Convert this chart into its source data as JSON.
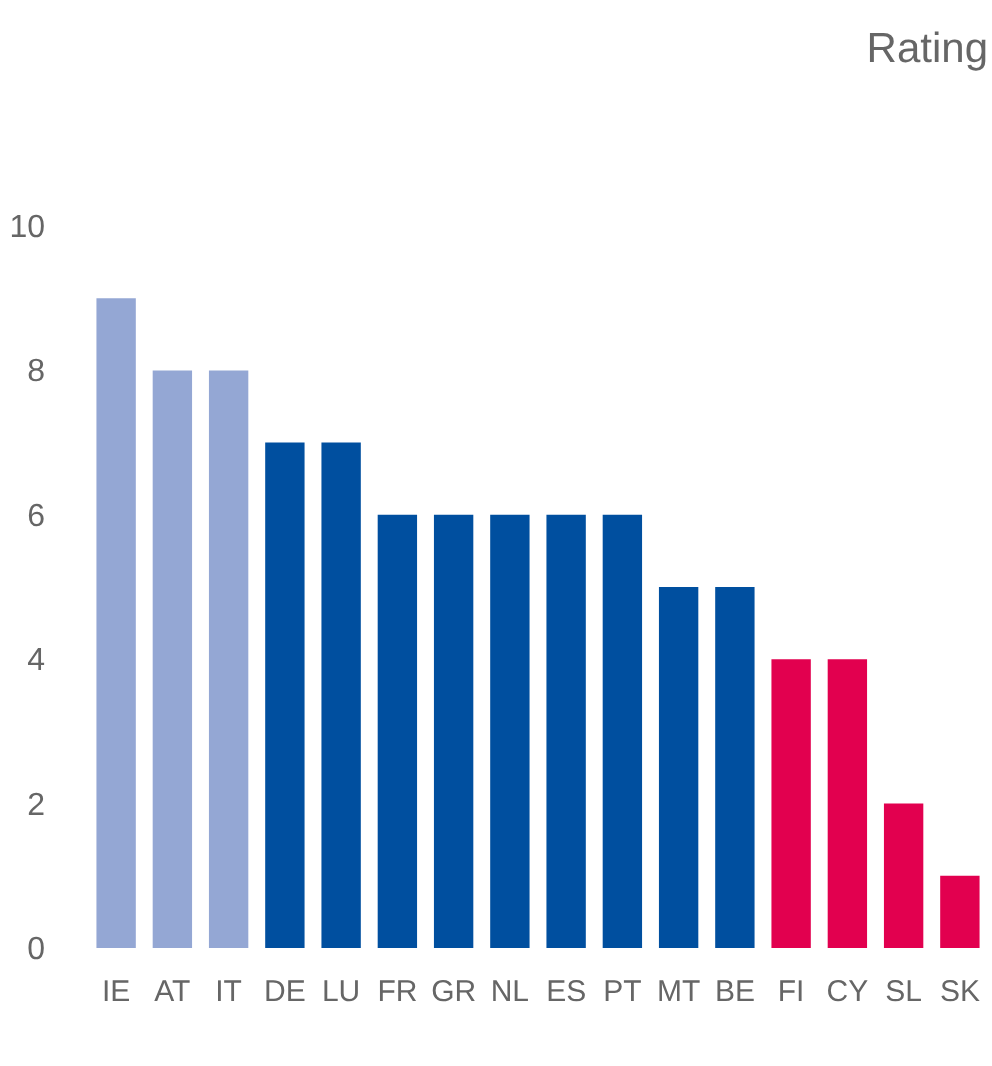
{
  "chart_data": {
    "type": "bar",
    "ylabel": "Rating",
    "categories": [
      "IE",
      "AT",
      "IT",
      "DE",
      "LU",
      "FR",
      "GR",
      "NL",
      "ES",
      "PT",
      "MT",
      "BE",
      "FI",
      "CY",
      "SL",
      "SK"
    ],
    "values": [
      9,
      8,
      8,
      7,
      7,
      6,
      6,
      6,
      6,
      6,
      5,
      5,
      4,
      4,
      2,
      1
    ],
    "colors": [
      "#94a7d4",
      "#94a7d4",
      "#94a7d4",
      "#004f9f",
      "#004f9f",
      "#004f9f",
      "#004f9f",
      "#004f9f",
      "#004f9f",
      "#004f9f",
      "#004f9f",
      "#004f9f",
      "#e2004f",
      "#e2004f",
      "#e2004f",
      "#e2004f"
    ],
    "ylim": [
      0,
      10
    ],
    "yticks": [
      0,
      2,
      4,
      6,
      8,
      10
    ],
    "grid": false
  }
}
